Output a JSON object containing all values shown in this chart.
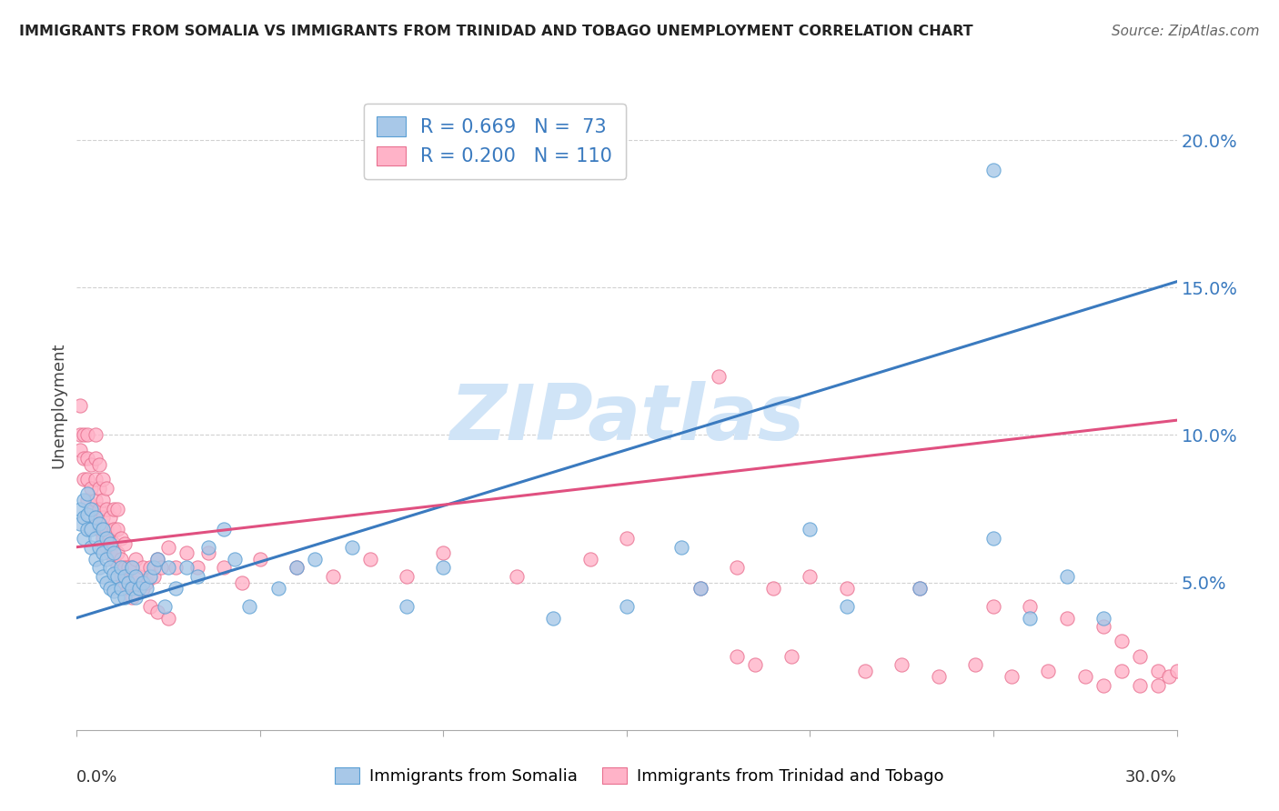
{
  "title": "IMMIGRANTS FROM SOMALIA VS IMMIGRANTS FROM TRINIDAD AND TOBAGO UNEMPLOYMENT CORRELATION CHART",
  "source": "Source: ZipAtlas.com",
  "ylabel": "Unemployment",
  "xmin": 0.0,
  "xmax": 0.3,
  "ymin": 0.0,
  "ymax": 0.22,
  "yticks": [
    0.05,
    0.1,
    0.15,
    0.2
  ],
  "ytick_labels": [
    "5.0%",
    "10.0%",
    "15.0%",
    "20.0%"
  ],
  "xticks": [
    0.0,
    0.05,
    0.1,
    0.15,
    0.2,
    0.25,
    0.3
  ],
  "somalia_color": "#a8c8e8",
  "somalia_edge_color": "#5a9fd4",
  "tt_color": "#ffb3c8",
  "tt_edge_color": "#e87090",
  "somalia_line_color": "#3a7abf",
  "tt_line_color": "#e05080",
  "somalia_R": 0.669,
  "somalia_N": 73,
  "tt_R": 0.2,
  "tt_N": 110,
  "somalia_line_x": [
    0.0,
    0.3
  ],
  "somalia_line_y": [
    0.038,
    0.152
  ],
  "tt_line_x": [
    0.0,
    0.3
  ],
  "tt_line_y": [
    0.062,
    0.105
  ],
  "watermark_text": "ZIPatlas",
  "watermark_color": "#d0e4f7",
  "somalia_x": [
    0.001,
    0.001,
    0.002,
    0.002,
    0.002,
    0.003,
    0.003,
    0.003,
    0.004,
    0.004,
    0.004,
    0.005,
    0.005,
    0.005,
    0.006,
    0.006,
    0.006,
    0.007,
    0.007,
    0.007,
    0.008,
    0.008,
    0.008,
    0.009,
    0.009,
    0.009,
    0.01,
    0.01,
    0.01,
    0.011,
    0.011,
    0.012,
    0.012,
    0.013,
    0.013,
    0.014,
    0.015,
    0.015,
    0.016,
    0.016,
    0.017,
    0.018,
    0.019,
    0.02,
    0.021,
    0.022,
    0.024,
    0.025,
    0.027,
    0.03,
    0.033,
    0.036,
    0.04,
    0.043,
    0.047,
    0.055,
    0.06,
    0.065,
    0.075,
    0.09,
    0.1,
    0.13,
    0.15,
    0.165,
    0.17,
    0.2,
    0.21,
    0.23,
    0.25,
    0.26,
    0.27,
    0.28,
    0.25
  ],
  "somalia_y": [
    0.07,
    0.075,
    0.065,
    0.072,
    0.078,
    0.068,
    0.073,
    0.08,
    0.062,
    0.068,
    0.075,
    0.058,
    0.065,
    0.072,
    0.055,
    0.062,
    0.07,
    0.052,
    0.06,
    0.068,
    0.05,
    0.058,
    0.065,
    0.048,
    0.055,
    0.063,
    0.047,
    0.053,
    0.06,
    0.045,
    0.052,
    0.048,
    0.055,
    0.045,
    0.052,
    0.05,
    0.048,
    0.055,
    0.045,
    0.052,
    0.048,
    0.05,
    0.048,
    0.052,
    0.055,
    0.058,
    0.042,
    0.055,
    0.048,
    0.055,
    0.052,
    0.062,
    0.068,
    0.058,
    0.042,
    0.048,
    0.055,
    0.058,
    0.062,
    0.042,
    0.055,
    0.038,
    0.042,
    0.062,
    0.048,
    0.068,
    0.042,
    0.048,
    0.065,
    0.038,
    0.052,
    0.038,
    0.19
  ],
  "tt_x": [
    0.001,
    0.001,
    0.001,
    0.002,
    0.002,
    0.002,
    0.003,
    0.003,
    0.003,
    0.003,
    0.004,
    0.004,
    0.004,
    0.005,
    0.005,
    0.005,
    0.005,
    0.005,
    0.006,
    0.006,
    0.006,
    0.006,
    0.007,
    0.007,
    0.007,
    0.007,
    0.008,
    0.008,
    0.008,
    0.008,
    0.009,
    0.009,
    0.009,
    0.01,
    0.01,
    0.01,
    0.01,
    0.011,
    0.011,
    0.011,
    0.011,
    0.012,
    0.012,
    0.012,
    0.013,
    0.013,
    0.013,
    0.014,
    0.014,
    0.015,
    0.015,
    0.016,
    0.016,
    0.017,
    0.018,
    0.018,
    0.019,
    0.02,
    0.021,
    0.022,
    0.023,
    0.025,
    0.027,
    0.03,
    0.033,
    0.036,
    0.04,
    0.045,
    0.05,
    0.06,
    0.07,
    0.08,
    0.09,
    0.1,
    0.12,
    0.14,
    0.15,
    0.17,
    0.18,
    0.19,
    0.2,
    0.21,
    0.23,
    0.25,
    0.26,
    0.27,
    0.28,
    0.285,
    0.29,
    0.295,
    0.02,
    0.022,
    0.025,
    0.175,
    0.18,
    0.185,
    0.195,
    0.215,
    0.225,
    0.235,
    0.245,
    0.255,
    0.265,
    0.275,
    0.28,
    0.285,
    0.29,
    0.295,
    0.298,
    0.3
  ],
  "tt_y": [
    0.095,
    0.1,
    0.11,
    0.085,
    0.092,
    0.1,
    0.078,
    0.085,
    0.092,
    0.1,
    0.075,
    0.082,
    0.09,
    0.072,
    0.078,
    0.085,
    0.092,
    0.1,
    0.068,
    0.075,
    0.082,
    0.09,
    0.065,
    0.072,
    0.078,
    0.085,
    0.062,
    0.068,
    0.075,
    0.082,
    0.06,
    0.065,
    0.072,
    0.058,
    0.063,
    0.068,
    0.075,
    0.055,
    0.06,
    0.068,
    0.075,
    0.052,
    0.058,
    0.065,
    0.05,
    0.055,
    0.063,
    0.048,
    0.055,
    0.045,
    0.055,
    0.05,
    0.058,
    0.052,
    0.048,
    0.055,
    0.05,
    0.055,
    0.052,
    0.058,
    0.055,
    0.062,
    0.055,
    0.06,
    0.055,
    0.06,
    0.055,
    0.05,
    0.058,
    0.055,
    0.052,
    0.058,
    0.052,
    0.06,
    0.052,
    0.058,
    0.065,
    0.048,
    0.055,
    0.048,
    0.052,
    0.048,
    0.048,
    0.042,
    0.042,
    0.038,
    0.035,
    0.03,
    0.025,
    0.02,
    0.042,
    0.04,
    0.038,
    0.12,
    0.025,
    0.022,
    0.025,
    0.02,
    0.022,
    0.018,
    0.022,
    0.018,
    0.02,
    0.018,
    0.015,
    0.02,
    0.015,
    0.015,
    0.018,
    0.02
  ]
}
